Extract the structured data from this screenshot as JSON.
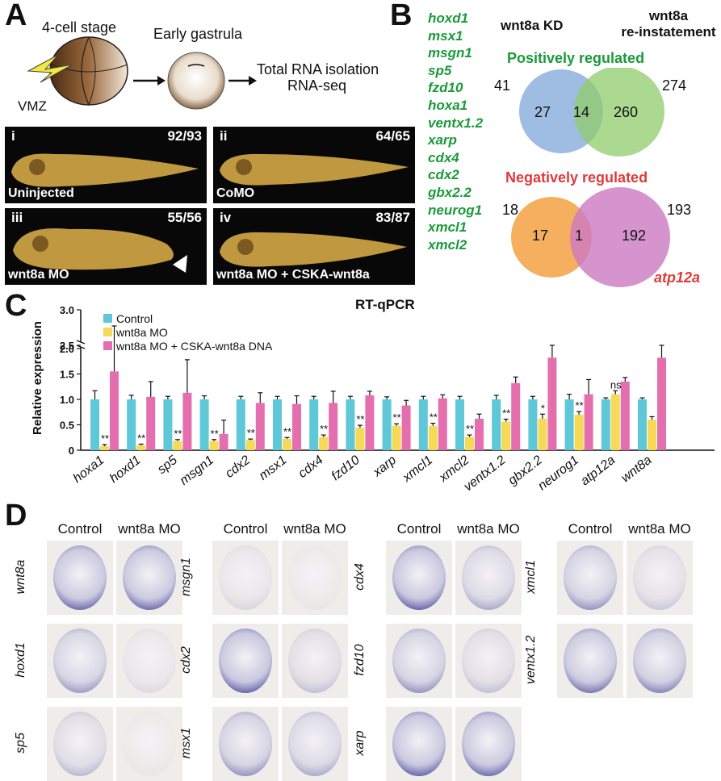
{
  "panel_labels": {
    "a": "A",
    "b": "B",
    "c": "C",
    "d": "D"
  },
  "panel_a": {
    "stage1": "4-cell stage",
    "stage2": "Early gastrula",
    "output_line1": "Total RNA isolation",
    "output_line2": "RNA-seq",
    "vmz": "VMZ",
    "embryo_panels": [
      {
        "numeral": "i",
        "count": "92/93",
        "condition": "Uninjected"
      },
      {
        "numeral": "ii",
        "count": "64/65",
        "condition": "CoMO"
      },
      {
        "numeral": "iii",
        "count": "55/56",
        "condition": "wnt8a MO"
      },
      {
        "numeral": "iv",
        "count": "83/87",
        "condition": "wnt8a MO + CSKA-wnt8a"
      }
    ]
  },
  "panel_b": {
    "genes": [
      "hoxd1",
      "msx1",
      "msgn1",
      "sp5",
      "fzd10",
      "hoxa1",
      "ventx1.2",
      "xarp",
      "cdx4",
      "cdx2",
      "gbx2.2",
      "neurog1",
      "xmcl1",
      "xmcl2"
    ],
    "col1": "wnt8a KD",
    "col2_line1": "wnt8a",
    "col2_line2": "re-instatement",
    "pos_title": "Positively regulated",
    "pos": {
      "left_total": "41",
      "right_total": "274",
      "left_only": "27",
      "overlap": "14",
      "right_only": "260"
    },
    "neg_title": "Negatively regulated",
    "neg": {
      "left_total": "18",
      "right_total": "193",
      "left_only": "17",
      "overlap": "1",
      "right_only": "192"
    },
    "neg_gene": "atp12a",
    "colors": {
      "blue": "#7fa7d9",
      "green": "#8fcc6a",
      "orange": "#f5a142",
      "purple": "#cc79c2",
      "green_text": "#1a9a3a",
      "red_text": "#e03a3a"
    }
  },
  "chart_data": {
    "type": "bar",
    "title": "RT-qPCR",
    "ylabel": "Relative expression",
    "yticks": [
      "0",
      "0.5",
      "1.0",
      "1.5",
      "2.0",
      "2.5",
      "3.0"
    ],
    "ylim": [
      0,
      3.0
    ],
    "axis_break": [
      2.0,
      2.6
    ],
    "categories": [
      "hoxa1",
      "hoxd1",
      "sp5",
      "msgn1",
      "cdx2",
      "msx1",
      "cdx4",
      "fzd10",
      "xarp",
      "xmcl1",
      "xmcl2",
      "ventx1.2",
      "gbx2.2",
      "neurog1",
      "atp12a",
      "wnt8a"
    ],
    "series": [
      {
        "name": "Control",
        "color": "#5ec8d8",
        "values": [
          1.0,
          1.0,
          1.0,
          1.0,
          1.0,
          1.0,
          1.0,
          1.0,
          1.0,
          1.0,
          1.0,
          1.0,
          1.0,
          1.0,
          1.0,
          1.0
        ],
        "errors": [
          0.17,
          0.08,
          0.06,
          0.07,
          0.06,
          0.06,
          0.06,
          0.06,
          0.05,
          0.06,
          0.06,
          0.08,
          0.06,
          0.1,
          0.03,
          0.03
        ]
      },
      {
        "name": "wnt8a MO",
        "color": "#f5d957",
        "values": [
          0.08,
          0.1,
          0.18,
          0.18,
          0.2,
          0.22,
          0.26,
          0.44,
          0.48,
          0.48,
          0.26,
          0.56,
          0.62,
          0.7,
          1.1,
          0.6
        ],
        "errors": [
          0.03,
          0.02,
          0.03,
          0.03,
          0.02,
          0.03,
          0.04,
          0.05,
          0.04,
          0.05,
          0.04,
          0.05,
          0.09,
          0.06,
          0.07,
          0.06
        ]
      },
      {
        "name": "wnt8a MO + CSKA-wnt8a DNA",
        "color": "#e56fae",
        "values": [
          1.55,
          1.05,
          1.13,
          0.32,
          0.93,
          0.91,
          0.93,
          1.08,
          0.88,
          1.02,
          0.62,
          1.32,
          1.82,
          1.1,
          1.35,
          1.82
        ],
        "errors": [
          1.25,
          0.3,
          0.65,
          0.27,
          0.2,
          0.16,
          0.23,
          0.08,
          0.1,
          0.07,
          0.09,
          0.12,
          0.28,
          0.29,
          0.08,
          0.28
        ]
      }
    ],
    "significance": [
      "**",
      "**",
      "**",
      "**",
      "**",
      "**",
      "**",
      "**",
      "**",
      "**",
      "**",
      "**",
      "*",
      "**",
      "ns",
      ""
    ]
  },
  "panel_d": {
    "col_control": "Control",
    "col_mo": "wnt8a MO",
    "groups": [
      {
        "genes": [
          "wnt8a",
          "hoxd1",
          "sp5"
        ]
      },
      {
        "genes": [
          "msgn1",
          "cdx2",
          "msx1"
        ]
      },
      {
        "genes": [
          "cdx4",
          "fzd10",
          "xarp"
        ]
      },
      {
        "genes": [
          "xmcl1",
          "ventx1.2"
        ]
      }
    ]
  }
}
